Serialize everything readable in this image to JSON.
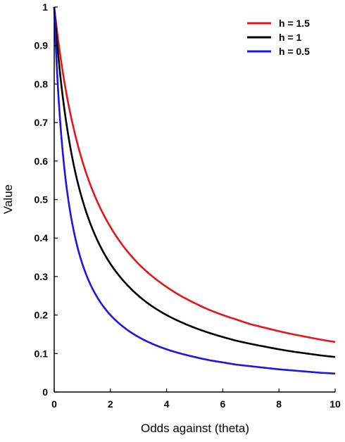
{
  "chart_data": {
    "type": "line",
    "title": "",
    "xlabel": "Odds against (theta)",
    "ylabel": "Value",
    "xlim": [
      0,
      10
    ],
    "ylim": [
      0,
      1
    ],
    "xticks": [
      "0",
      "2",
      "4",
      "6",
      "8",
      "10"
    ],
    "yticks": [
      "0",
      "0.1",
      "0.2",
      "0.3",
      "0.4",
      "0.5",
      "0.6",
      "0.7",
      "0.8",
      "0.9",
      "1"
    ],
    "grid": false,
    "legend_position": "top-right",
    "series": [
      {
        "name": "h = 1.5",
        "color": "#e8141a",
        "x": [
          0,
          0.25,
          0.5,
          0.75,
          1,
          1.5,
          2,
          2.5,
          3,
          3.5,
          4,
          4.5,
          5,
          5.5,
          6,
          6.5,
          7,
          7.5,
          8,
          8.5,
          9,
          9.5,
          10
        ],
        "y": [
          1,
          0.857,
          0.75,
          0.667,
          0.6,
          0.5,
          0.429,
          0.375,
          0.333,
          0.3,
          0.273,
          0.25,
          0.231,
          0.214,
          0.2,
          0.188,
          0.176,
          0.167,
          0.158,
          0.15,
          0.143,
          0.136,
          0.13
        ]
      },
      {
        "name": "h = 1",
        "color": "#000000",
        "x": [
          0,
          0.25,
          0.5,
          0.75,
          1,
          1.5,
          2,
          2.5,
          3,
          3.5,
          4,
          4.5,
          5,
          5.5,
          6,
          6.5,
          7,
          7.5,
          8,
          8.5,
          9,
          9.5,
          10
        ],
        "y": [
          1,
          0.8,
          0.667,
          0.571,
          0.5,
          0.4,
          0.333,
          0.286,
          0.25,
          0.222,
          0.2,
          0.182,
          0.167,
          0.154,
          0.143,
          0.133,
          0.125,
          0.118,
          0.111,
          0.105,
          0.1,
          0.095,
          0.091
        ]
      },
      {
        "name": "h = 0.5",
        "color": "#1c14e8",
        "x": [
          0,
          0.25,
          0.5,
          0.75,
          1,
          1.5,
          2,
          2.5,
          3,
          3.5,
          4,
          4.5,
          5,
          5.5,
          6,
          6.5,
          7,
          7.5,
          8,
          8.5,
          9,
          9.5,
          10
        ],
        "y": [
          1,
          0.667,
          0.5,
          0.4,
          0.333,
          0.25,
          0.2,
          0.167,
          0.143,
          0.125,
          0.111,
          0.1,
          0.091,
          0.083,
          0.077,
          0.071,
          0.067,
          0.063,
          0.059,
          0.056,
          0.053,
          0.05,
          0.048
        ]
      }
    ]
  }
}
